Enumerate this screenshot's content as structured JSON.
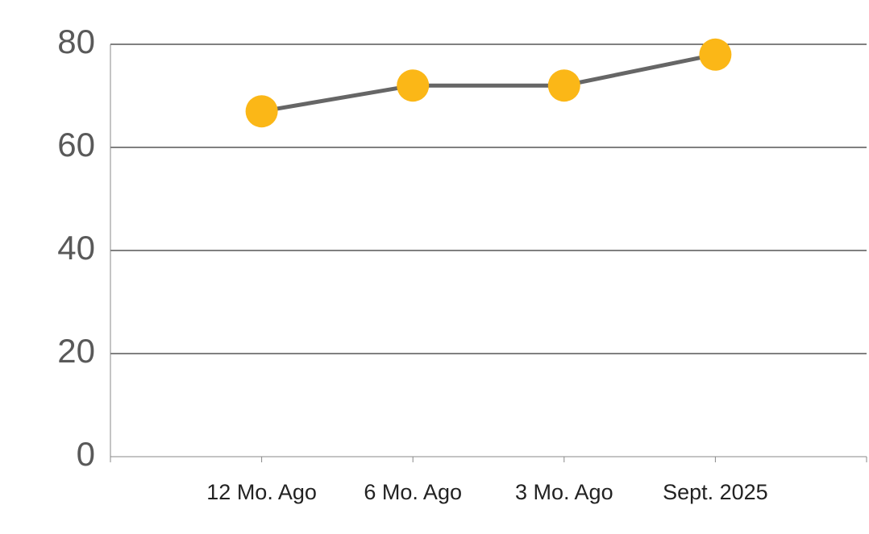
{
  "chart_data": {
    "type": "line",
    "categories": [
      "12 Mo. Ago",
      "6 Mo. Ago",
      "3 Mo. Ago",
      "Sept. 2025"
    ],
    "values": [
      67,
      72,
      72,
      78
    ],
    "line_color": "#666666",
    "marker_color": "#fbb717",
    "ylim": [
      0,
      80
    ],
    "yticks": [
      0,
      20,
      40,
      60,
      80
    ],
    "grid": true
  }
}
